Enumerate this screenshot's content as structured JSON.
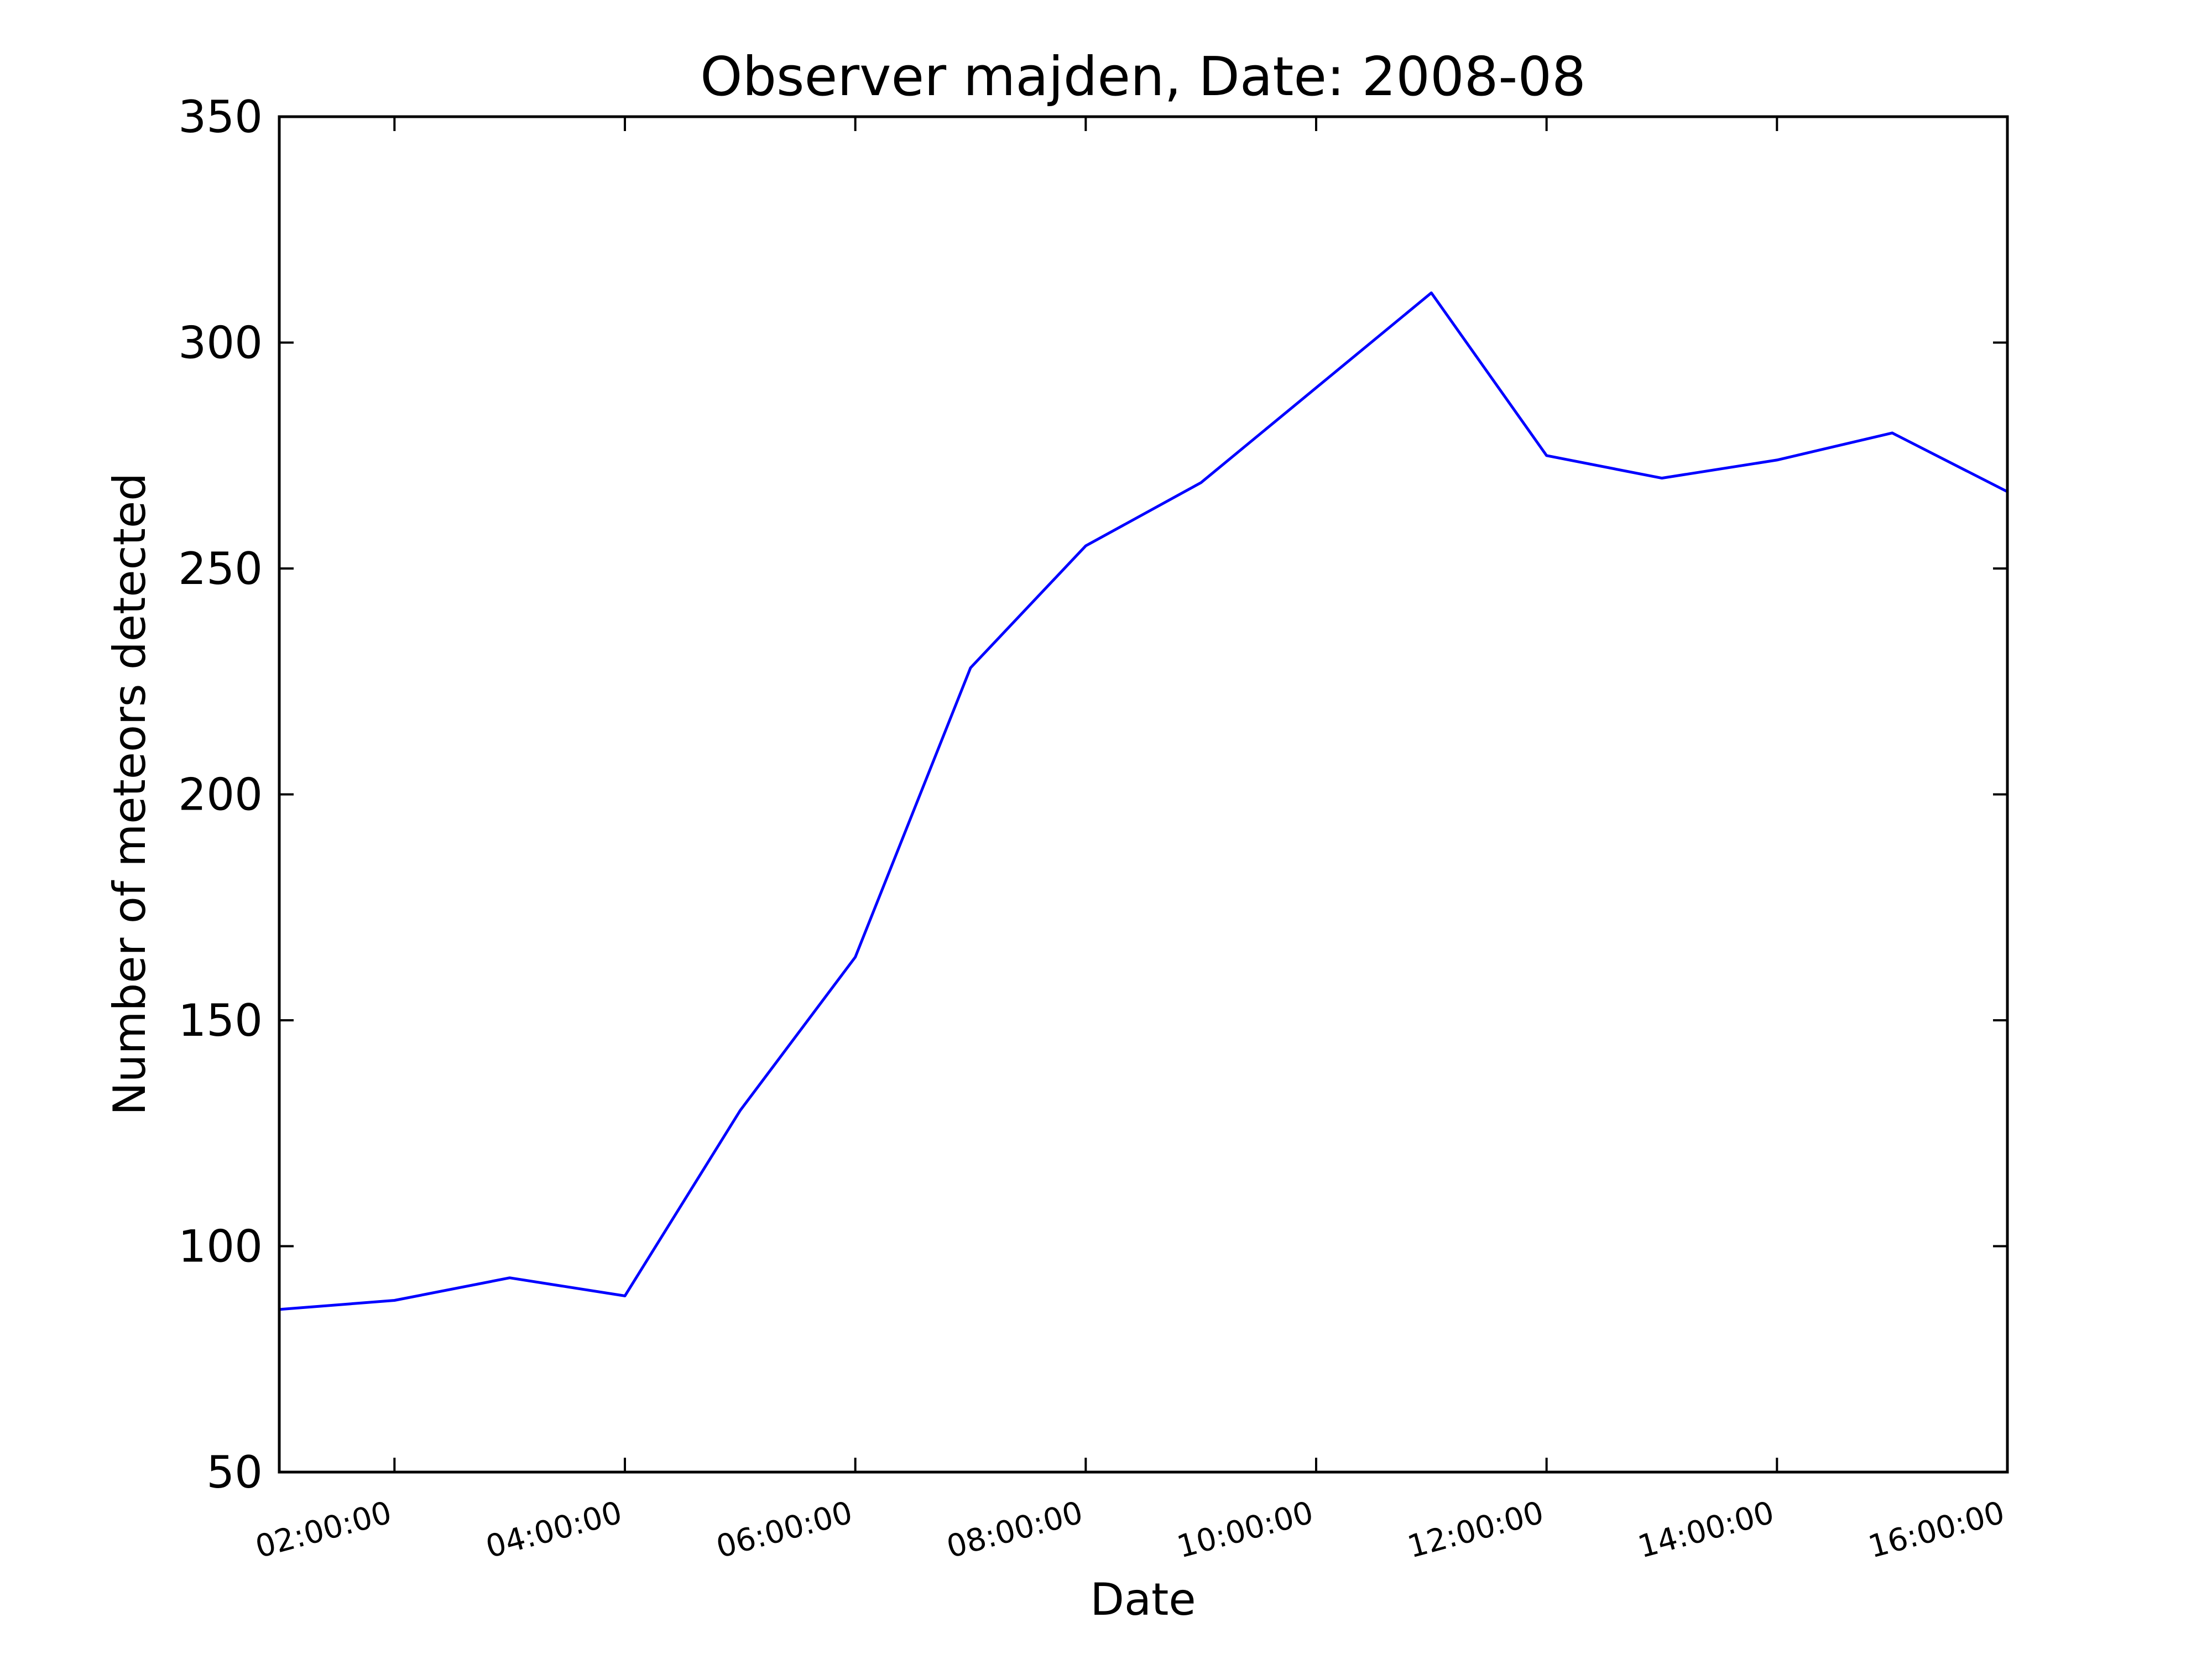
{
  "chart_data": {
    "type": "line",
    "title": "Observer majden, Date: 2008-08",
    "xlabel": "Date",
    "ylabel": "Number of meteors detected",
    "xlim": [
      "01:00:00",
      "16:00:00"
    ],
    "ylim": [
      50,
      350
    ],
    "xticks": [
      "02:00:00",
      "04:00:00",
      "06:00:00",
      "08:00:00",
      "10:00:00",
      "12:00:00",
      "14:00:00",
      "16:00:00"
    ],
    "yticks": [
      50,
      100,
      150,
      200,
      250,
      300,
      350
    ],
    "grid": false,
    "legend": "none",
    "series": [
      {
        "color": "#0000ff",
        "x": [
          "01:00:00",
          "02:00:00",
          "03:00:00",
          "04:00:00",
          "05:00:00",
          "06:00:00",
          "07:00:00",
          "08:00:00",
          "09:00:00",
          "10:00:00",
          "11:00:00",
          "12:00:00",
          "13:00:00",
          "14:00:00",
          "15:00:00",
          "16:00:00"
        ],
        "y": [
          86,
          88,
          93,
          89,
          130,
          164,
          228,
          255,
          269,
          290,
          311,
          275,
          270,
          274,
          280,
          267
        ]
      }
    ]
  }
}
